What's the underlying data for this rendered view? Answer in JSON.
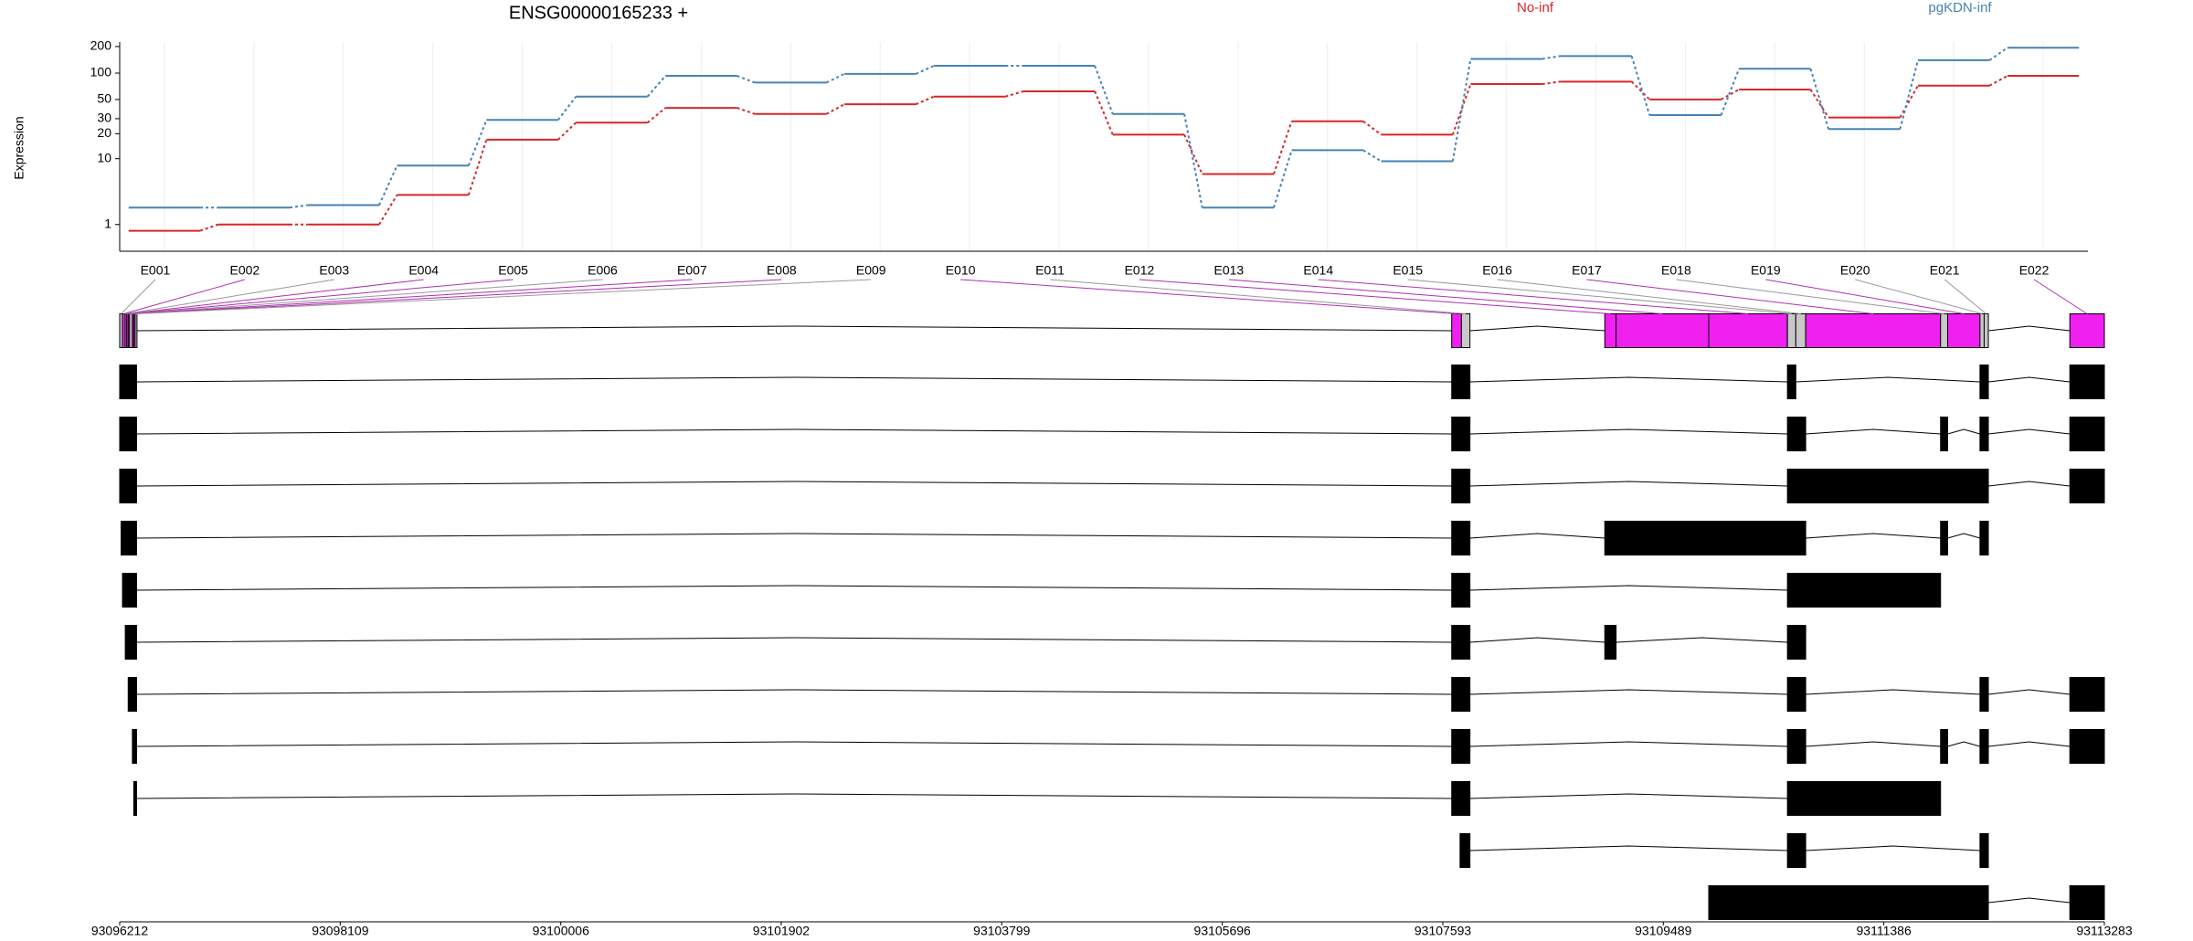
{
  "chart_data": {
    "type": "line",
    "title": "ENSG00000165233 +",
    "y_label": "Expression",
    "categories": [
      "E001",
      "E002",
      "E003",
      "E004",
      "E005",
      "E006",
      "E007",
      "E008",
      "E009",
      "E010",
      "E011",
      "E012",
      "E013",
      "E014",
      "E015",
      "E016",
      "E017",
      "E018",
      "E019",
      "E020",
      "E021",
      "E022"
    ],
    "series": [
      {
        "name": "No-inf",
        "color": "#d62728",
        "values": [
          0.7,
          1.0,
          1.0,
          3.3,
          17,
          27,
          40,
          34,
          44,
          54,
          62,
          19.5,
          6.4,
          28,
          19.5,
          75,
          80,
          50,
          65,
          31,
          72,
          93
        ]
      },
      {
        "name": "pgKDN-inf",
        "color": "#4682b4",
        "values": [
          2.1,
          2.1,
          2.3,
          8.2,
          29,
          54,
          93,
          78,
          98,
          121,
          121,
          34,
          2.1,
          12.7,
          9.3,
          145,
          156,
          33,
          112,
          22.7,
          140,
          194
        ]
      }
    ],
    "ylim": [
      0,
      225
    ],
    "yticks": [
      1,
      10,
      20,
      30,
      50,
      100,
      200
    ],
    "ylog": true,
    "log_offset": 1,
    "grid": true
  },
  "gene_model": {
    "xlim": [
      93096212,
      93113283
    ],
    "xticks": [
      93096212,
      93098109,
      93100006,
      93101902,
      93103799,
      93105696,
      93107593,
      93109489,
      93111386,
      93113283
    ],
    "exons": [
      {
        "start": 93096212,
        "end": 93096236,
        "color": "#c8c8c8"
      },
      {
        "start": 93096236,
        "end": 93096260,
        "color": "#f020f0"
      },
      {
        "start": 93096260,
        "end": 93096272,
        "color": "#c8c8c8"
      },
      {
        "start": 93096272,
        "end": 93096285,
        "color": "#f020f0"
      },
      {
        "start": 93096285,
        "end": 93096297,
        "color": "#f020f0"
      },
      {
        "start": 93096297,
        "end": 93096321,
        "color": "#c8c8c8"
      },
      {
        "start": 93096321,
        "end": 93096333,
        "color": "#f020f0"
      },
      {
        "start": 93096333,
        "end": 93096345,
        "color": "#f020f0"
      },
      {
        "start": 93096345,
        "end": 93096357,
        "color": "#c8c8c8"
      },
      {
        "start": 93107669,
        "end": 93107753,
        "color": "#f020f0"
      },
      {
        "start": 93107753,
        "end": 93107826,
        "color": "#c8c8c8"
      },
      {
        "start": 93108986,
        "end": 93109083,
        "color": "#f020f0"
      },
      {
        "start": 93109083,
        "end": 93109880,
        "color": "#f020f0"
      },
      {
        "start": 93109880,
        "end": 93110557,
        "color": "#f020f0"
      },
      {
        "start": 93110557,
        "end": 93110629,
        "color": "#c8c8c8"
      },
      {
        "start": 93110629,
        "end": 93110714,
        "color": "#c8c8c8"
      },
      {
        "start": 93110714,
        "end": 93111874,
        "color": "#f020f0"
      },
      {
        "start": 93111874,
        "end": 93111935,
        "color": "#c8c8c8"
      },
      {
        "start": 93111935,
        "end": 93112213,
        "color": "#f020f0"
      },
      {
        "start": 93112213,
        "end": 93112249,
        "color": "#c8c8c8"
      },
      {
        "start": 93112249,
        "end": 93112285,
        "color": "#c8c8c8"
      },
      {
        "start": 93112986,
        "end": 93113283,
        "color": "#f020f0"
      }
    ],
    "transcripts": [
      [
        [
          93096212,
          93096357
        ],
        [
          93107669,
          93107826
        ],
        [
          93110557,
          93110629
        ],
        [
          93112213,
          93112285
        ],
        [
          93112986,
          93113283
        ]
      ],
      [
        [
          93096212,
          93096357
        ],
        [
          93107669,
          93107826
        ],
        [
          93110557,
          93110714
        ],
        [
          93111874,
          93111935
        ],
        [
          93112213,
          93112285
        ],
        [
          93112986,
          93113283
        ]
      ],
      [
        [
          93096212,
          93096357
        ],
        [
          93107669,
          93107826
        ],
        [
          93110557,
          93112285
        ],
        [
          93112986,
          93113283
        ]
      ],
      [
        [
          93096224,
          93096357
        ],
        [
          93107669,
          93107826
        ],
        [
          93108986,
          93110714
        ],
        [
          93111874,
          93111935
        ],
        [
          93112213,
          93112285
        ]
      ],
      [
        [
          93096236,
          93096357
        ],
        [
          93107669,
          93107826
        ],
        [
          93110557,
          93111874
        ]
      ],
      [
        [
          93096260,
          93096357
        ],
        [
          93107669,
          93107826
        ],
        [
          93108986,
          93109083
        ],
        [
          93110557,
          93110714
        ]
      ],
      [
        [
          93096285,
          93096357
        ],
        [
          93107669,
          93107826
        ],
        [
          93110557,
          93110714
        ],
        [
          93112213,
          93112285
        ],
        [
          93112986,
          93113283
        ]
      ],
      [
        [
          93096321,
          93096357
        ],
        [
          93107669,
          93107826
        ],
        [
          93110557,
          93110714
        ],
        [
          93111874,
          93111935
        ],
        [
          93112213,
          93112285
        ],
        [
          93112986,
          93113283
        ]
      ],
      [
        [
          93096333,
          93096357
        ],
        [
          93107669,
          93107826
        ],
        [
          93110557,
          93111874
        ]
      ],
      [
        [
          93107741,
          93107826
        ],
        [
          93110557,
          93110714
        ],
        [
          93112213,
          93112285
        ]
      ],
      [
        [
          93109880,
          93112285
        ],
        [
          93112986,
          93113283
        ]
      ]
    ]
  }
}
